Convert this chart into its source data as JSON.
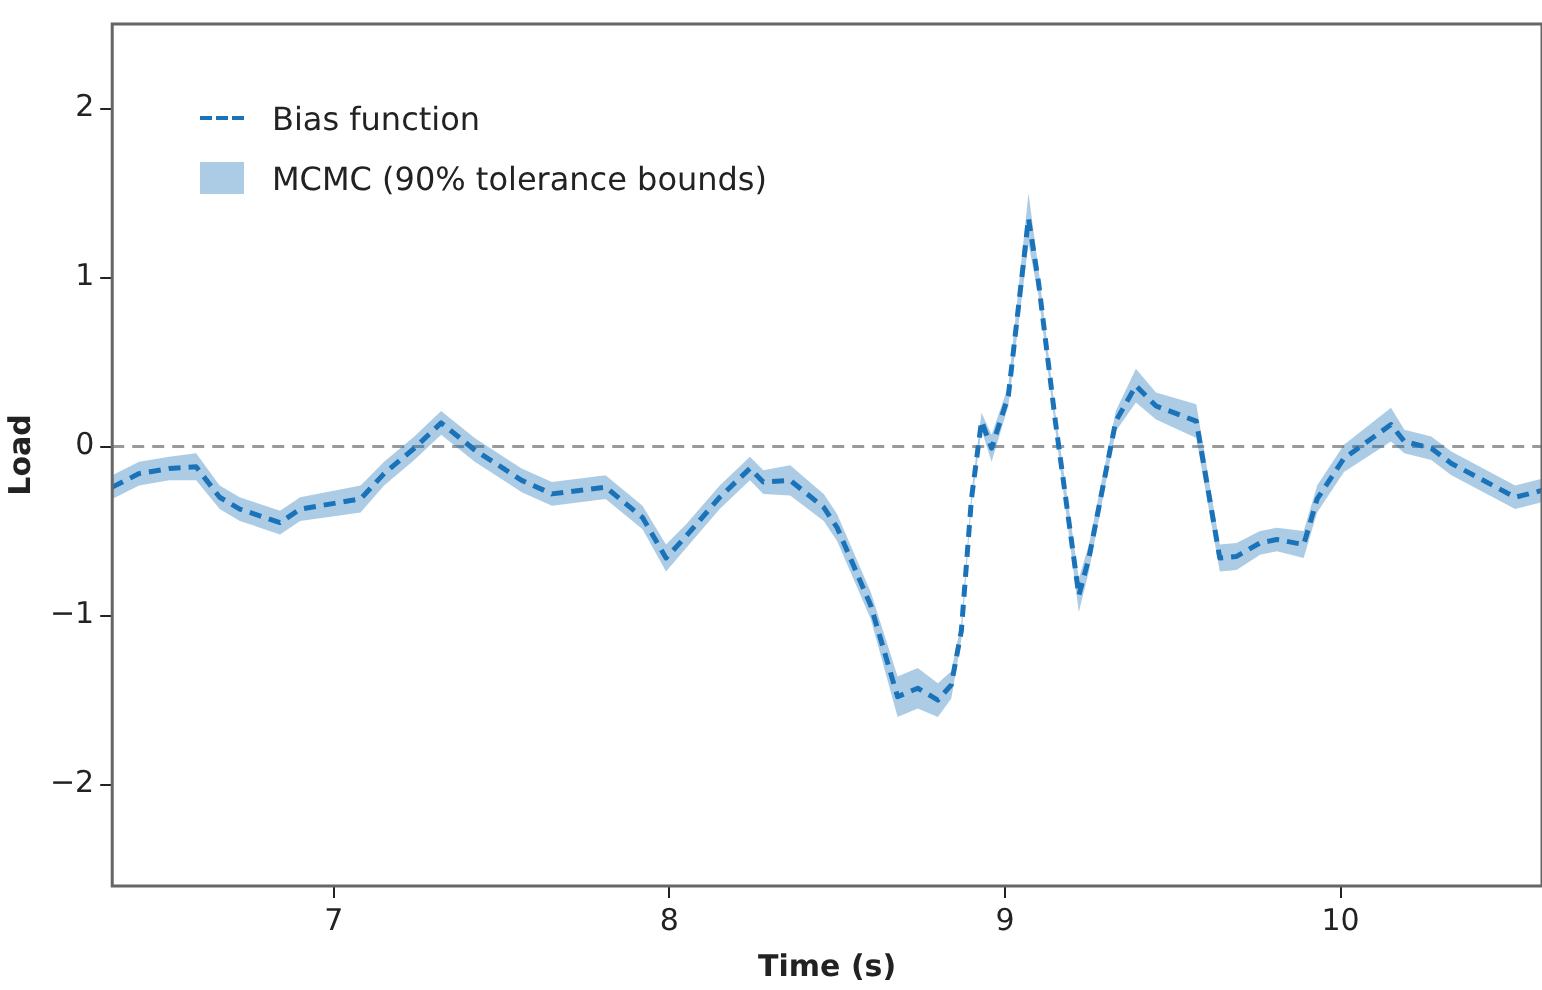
{
  "chart_data": {
    "type": "line",
    "xlabel": "Time (s)",
    "ylabel": "Load",
    "x": [
      6.34,
      6.42,
      6.51,
      6.59,
      6.66,
      6.72,
      6.84,
      6.9,
      7.08,
      7.15,
      7.24,
      7.32,
      7.42,
      7.56,
      7.65,
      7.81,
      7.92,
      7.99,
      8.05,
      8.15,
      8.24,
      8.28,
      8.36,
      8.46,
      8.5,
      8.6,
      8.68,
      8.74,
      8.8,
      8.84,
      8.87,
      8.9,
      8.93,
      8.96,
      9.01,
      9.07,
      9.1,
      9.15,
      9.22,
      9.25,
      9.33,
      9.39,
      9.45,
      9.57,
      9.64,
      9.69,
      9.76,
      9.81,
      9.89,
      9.93,
      10.01,
      10.15,
      10.19,
      10.27,
      10.33,
      10.52,
      10.6
    ],
    "series": [
      {
        "name": "Bias function",
        "type": "line",
        "color": "#1a73b9",
        "line_style": "dashed",
        "values": [
          -0.24,
          -0.16,
          -0.13,
          -0.12,
          -0.3,
          -0.37,
          -0.45,
          -0.37,
          -0.31,
          -0.16,
          -0.01,
          0.14,
          -0.02,
          -0.2,
          -0.28,
          -0.24,
          -0.42,
          -0.66,
          -0.53,
          -0.3,
          -0.13,
          -0.21,
          -0.2,
          -0.36,
          -0.48,
          -0.94,
          -1.48,
          -1.43,
          -1.5,
          -1.41,
          -1.09,
          -0.31,
          0.15,
          -0.01,
          0.3,
          1.35,
          0.97,
          0.15,
          -0.88,
          -0.66,
          0.15,
          0.36,
          0.24,
          0.15,
          -0.66,
          -0.65,
          -0.57,
          -0.55,
          -0.58,
          -0.31,
          -0.07,
          0.13,
          0.03,
          -0.01,
          -0.1,
          -0.3,
          -0.26
        ],
        "lower": [
          -0.31,
          -0.23,
          -0.2,
          -0.2,
          -0.37,
          -0.44,
          -0.52,
          -0.44,
          -0.39,
          -0.23,
          -0.08,
          0.07,
          -0.09,
          -0.27,
          -0.35,
          -0.31,
          -0.49,
          -0.74,
          -0.6,
          -0.37,
          -0.2,
          -0.28,
          -0.29,
          -0.44,
          -0.56,
          -1.02,
          -1.6,
          -1.55,
          -1.6,
          -1.49,
          -1.14,
          -0.35,
          0.1,
          -0.09,
          0.24,
          1.2,
          0.89,
          0.1,
          -0.98,
          -0.74,
          0.09,
          0.26,
          0.16,
          0.05,
          -0.74,
          -0.73,
          -0.64,
          -0.62,
          -0.66,
          -0.39,
          -0.15,
          0.03,
          -0.04,
          -0.08,
          -0.17,
          -0.37,
          -0.33
        ],
        "upper": [
          -0.17,
          -0.09,
          -0.06,
          -0.04,
          -0.23,
          -0.3,
          -0.38,
          -0.3,
          -0.23,
          -0.09,
          0.06,
          0.21,
          0.05,
          -0.13,
          -0.21,
          -0.17,
          -0.35,
          -0.58,
          -0.46,
          -0.23,
          -0.06,
          -0.14,
          -0.11,
          -0.28,
          -0.4,
          -0.86,
          -1.36,
          -1.31,
          -1.4,
          -1.33,
          -1.04,
          -0.27,
          0.2,
          0.07,
          0.36,
          1.5,
          1.05,
          0.2,
          -0.78,
          -0.58,
          0.21,
          0.46,
          0.32,
          0.25,
          -0.58,
          -0.57,
          -0.5,
          -0.48,
          -0.5,
          -0.23,
          0.01,
          0.23,
          0.1,
          0.06,
          -0.03,
          -0.23,
          -0.19
        ]
      }
    ],
    "annotations": [
      "MCMC (90% tolerance bounds)"
    ],
    "xlim": [
      6.34,
      10.6
    ],
    "xticks": [
      7,
      8,
      9,
      10
    ],
    "ylim": [
      -2.6,
      2.5
    ],
    "yticks": [
      {
        "value": -2,
        "label": "−2"
      },
      {
        "value": -1,
        "label": "−1"
      },
      0,
      1,
      2
    ],
    "ref_lines": [
      {
        "axis": "y",
        "value": 0,
        "color": "#9a9a9a",
        "line_style": "dashed"
      }
    ],
    "grid": false,
    "legend": "top left",
    "marker": "none"
  }
}
